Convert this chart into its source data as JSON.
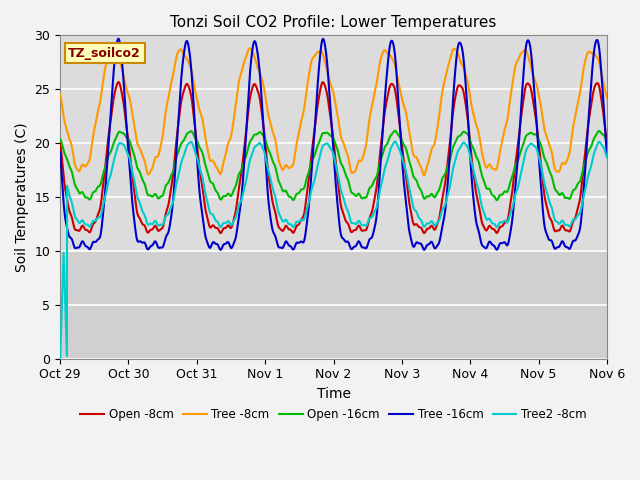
{
  "title": "Tonzi Soil CO2 Profile: Lower Temperatures",
  "xlabel": "Time",
  "ylabel": "Soil Temperatures (C)",
  "ylim": [
    0,
    30
  ],
  "annotation": "TZ_soilco2",
  "legend": [
    "Open -8cm",
    "Tree -8cm",
    "Open -16cm",
    "Tree -16cm",
    "Tree2 -8cm"
  ],
  "colors": [
    "#cc0000",
    "#ff9900",
    "#00bb00",
    "#0000cc",
    "#00cccc"
  ],
  "bg_color": "#dcdcdc",
  "bg_color_low": "#d0d0d0",
  "grid_color": "#c8c8c8",
  "fig_color": "#f2f2f2",
  "xtick_labels": [
    "Oct 29",
    "Oct 30",
    "Oct 31",
    "Nov 1",
    "Nov 2",
    "Nov 3",
    "Nov 4",
    "Nov 5",
    "Nov 6"
  ],
  "xtick_positions": [
    0,
    1,
    2,
    3,
    4,
    5,
    6,
    7,
    8
  ],
  "ytick_positions": [
    0,
    5,
    10,
    15,
    20,
    25,
    30
  ]
}
